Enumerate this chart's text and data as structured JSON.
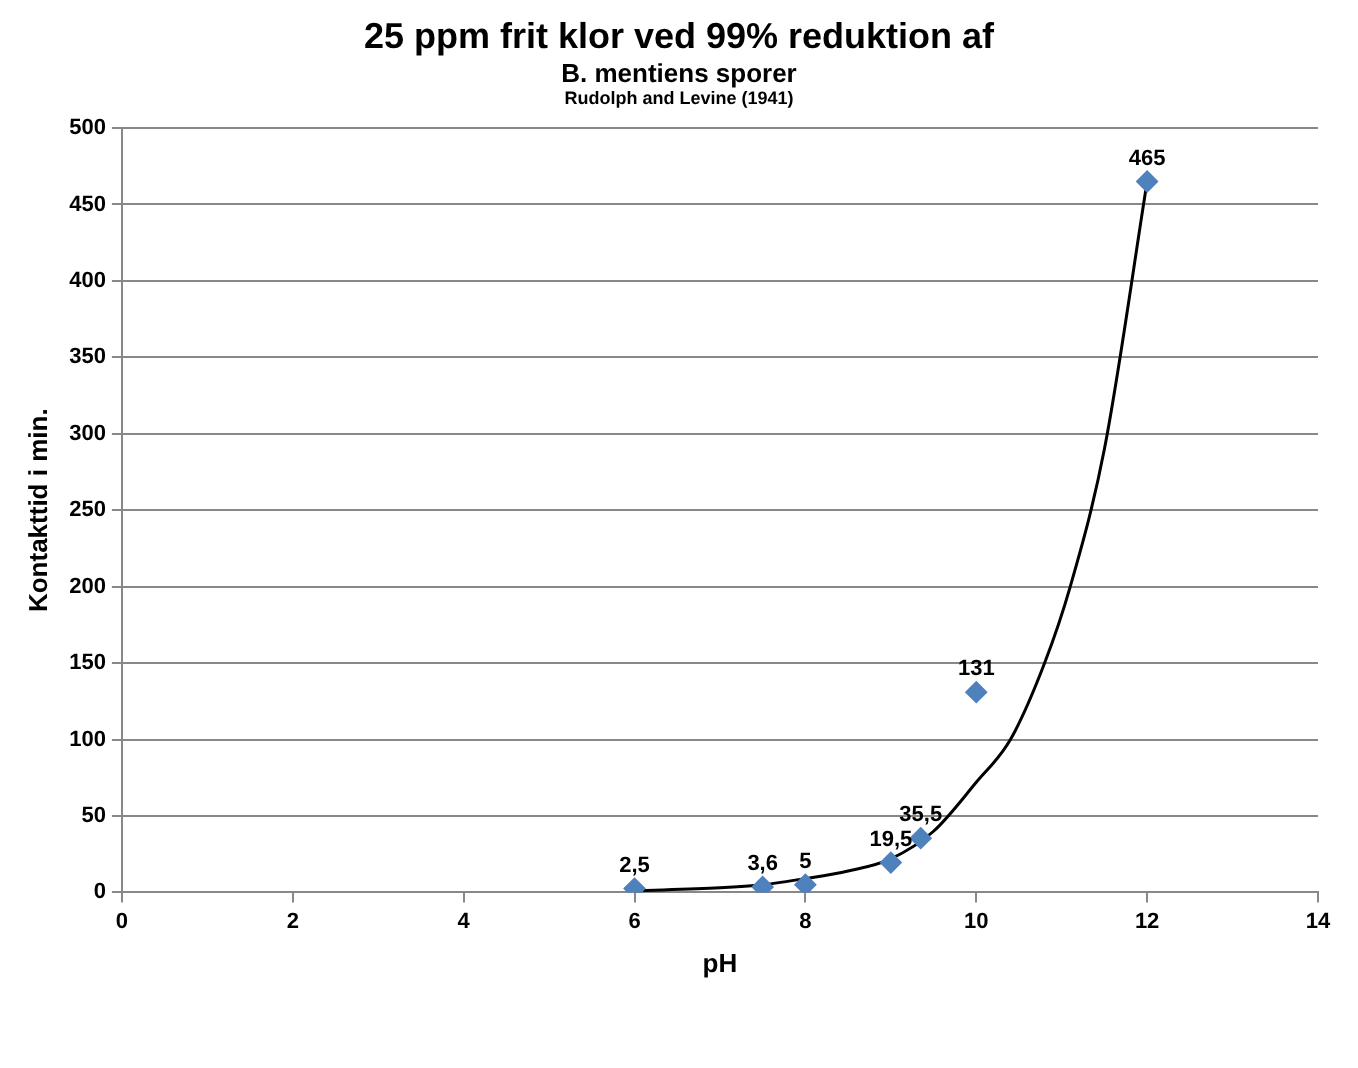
{
  "chart_data": {
    "type": "scatter",
    "title": "25 ppm frit klor ved 99% reduktion af",
    "subtitle": "B. mentiens sporer",
    "annotations": [
      "Rudolph and Levine (1941)"
    ],
    "xlabel": "pH",
    "ylabel": "Kontakttid i min.",
    "x": [
      6,
      7.5,
      8,
      9,
      9.35,
      10,
      12
    ],
    "series": [
      {
        "color": "#4f81bd",
        "marker": "diamond",
        "values": [
          2.5,
          3.6,
          5,
          19.5,
          35.5,
          131,
          465
        ],
        "value_labels": [
          "2,5",
          "3,6",
          "5",
          "19,5",
          "35,5",
          "131",
          "465"
        ]
      },
      {
        "type": "line",
        "color": "#000000",
        "x": [
          6,
          7,
          7.5,
          8,
          8.5,
          9,
          9.5,
          10,
          10.4,
          10.8,
          11.1,
          11.5,
          12
        ],
        "values": [
          1,
          3,
          5,
          9,
          14,
          22,
          40,
          72,
          100,
          150,
          200,
          290,
          465
        ]
      }
    ],
    "xlim": [
      0,
      14
    ],
    "xticks": [
      0,
      2,
      4,
      6,
      8,
      10,
      12,
      14
    ],
    "ylim": [
      0,
      500
    ],
    "yticks": [
      0,
      50,
      100,
      150,
      200,
      250,
      300,
      350,
      400,
      450,
      500
    ],
    "grid": "y",
    "legend": false
  }
}
